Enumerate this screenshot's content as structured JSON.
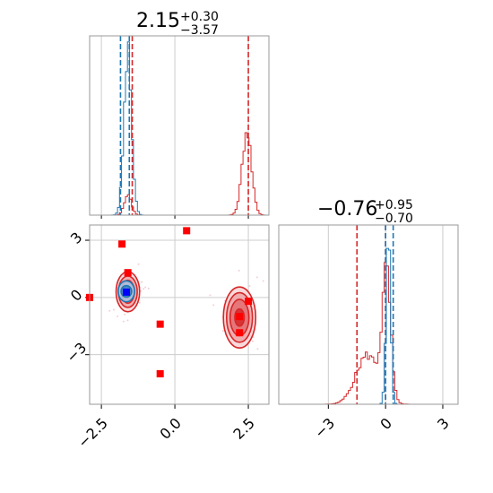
{
  "chart_data": {
    "type": "corner",
    "colors": {
      "red": "#d62728",
      "blue": "#1f77b4",
      "marker_red": "#ff0000",
      "marker_blue": "#0000ff",
      "frame": "#999999",
      "grid": "#cccccc"
    },
    "params": [
      {
        "title_main": "2.15",
        "title_plus": "+0.30",
        "title_minus": "−3.57",
        "range": [
          -2.9,
          3.2
        ],
        "ticks": [
          {
            "value": -2.5,
            "label": "−2.5"
          },
          {
            "value": 0.0,
            "label": "0.0"
          },
          {
            "value": 2.5,
            "label": "2.5"
          }
        ]
      },
      {
        "title_main": "−0.76",
        "title_plus": "+0.95",
        "title_minus": "−0.70",
        "range": [
          -5.6,
          3.8
        ],
        "ticks": [
          {
            "value": -3,
            "label": "−3"
          },
          {
            "value": 0,
            "label": "0"
          },
          {
            "value": 3,
            "label": "3"
          }
        ]
      }
    ],
    "hist_x": {
      "ymax": 1.0,
      "red_vlines": [
        -1.45,
        2.5
      ],
      "blue_vlines": [
        -1.85,
        -1.55
      ],
      "red_components": [
        {
          "mu": -1.6,
          "sigma": 0.12,
          "amp": 0.12
        },
        {
          "mu": 2.45,
          "sigma": 0.16,
          "amp": 0.48
        }
      ],
      "blue_components": [
        {
          "mu": -1.6,
          "sigma": 0.13,
          "amp": 0.92
        }
      ]
    },
    "hist_y": {
      "ymax": 1.0,
      "red_vlines": [
        -1.5,
        0.0
      ],
      "blue_vlines": [
        0.0,
        0.4
      ],
      "red_components": [
        {
          "mu": -0.95,
          "sigma": 0.6,
          "amp": 0.28
        },
        {
          "mu": 0.05,
          "sigma": 0.22,
          "amp": 0.7
        }
      ],
      "blue_components": [
        {
          "mu": 0.15,
          "sigma": 0.12,
          "amp": 0.95
        }
      ]
    },
    "scatter": {
      "red_markers": [
        {
          "x": -1.8,
          "y": 2.8
        },
        {
          "x": 0.4,
          "y": 3.5
        },
        {
          "x": -1.6,
          "y": 1.3
        },
        {
          "x": -2.9,
          "y": 0.0
        },
        {
          "x": -0.5,
          "y": -1.4
        },
        {
          "x": 2.2,
          "y": -1.0
        },
        {
          "x": 2.2,
          "y": -1.85
        },
        {
          "x": 2.5,
          "y": -0.2
        },
        {
          "x": -0.5,
          "y": -4.0
        }
      ],
      "blue_markers": [
        {
          "x": -1.65,
          "y": 0.28
        }
      ],
      "contours": [
        {
          "color": "red",
          "cx": -1.6,
          "cy": 0.3,
          "rx": [
            0.4,
            0.32,
            0.22,
            0.1
          ],
          "ry": [
            1.05,
            0.82,
            0.6,
            0.3
          ]
        },
        {
          "color": "blue",
          "cx": -1.65,
          "cy": 0.32,
          "rx": [
            0.28,
            0.18
          ],
          "ry": [
            0.55,
            0.3
          ]
        },
        {
          "color": "red",
          "cx": 2.2,
          "cy": -1.05,
          "rx": [
            0.55,
            0.44,
            0.32,
            0.16
          ],
          "ry": [
            1.6,
            1.3,
            0.95,
            0.45
          ]
        }
      ]
    }
  }
}
